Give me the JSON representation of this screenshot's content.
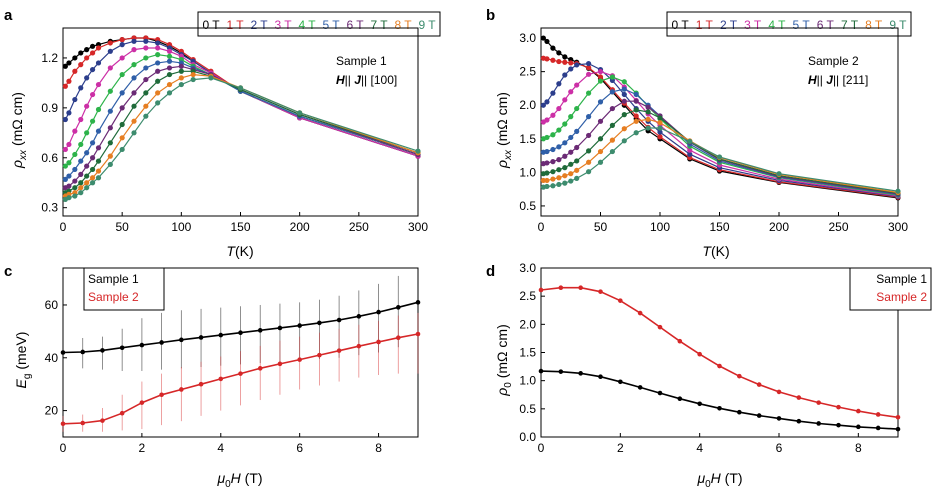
{
  "chart_data": [
    {
      "panel": "a",
      "type": "line",
      "annotation": [
        "Sample 1",
        "H|| J|| [100]"
      ],
      "xlabel": "T(K)",
      "ylabel": "ρxx (mΩ cm)",
      "xlim": [
        0,
        300
      ],
      "ylim": [
        0.25,
        1.38
      ],
      "xticks": [
        0,
        50,
        100,
        150,
        200,
        250,
        300
      ],
      "yticks": [
        0.3,
        0.6,
        0.9,
        1.2
      ],
      "ytick_labels": [
        "0.3",
        "0.6",
        "0.9",
        "1.2"
      ],
      "legend": {
        "placement": "top",
        "entries": [
          "0 T",
          "1 T",
          "2 T",
          "3 T",
          "4 T",
          "5 T",
          "6 T",
          "7 T",
          "8 T",
          "9 T"
        ]
      },
      "x": [
        2,
        5,
        10,
        15,
        20,
        25,
        30,
        40,
        50,
        60,
        70,
        80,
        90,
        100,
        110,
        125,
        150,
        200,
        300
      ],
      "series": [
        {
          "name": "0 T",
          "color": "#000000",
          "values": [
            1.15,
            1.17,
            1.2,
            1.23,
            1.25,
            1.27,
            1.28,
            1.3,
            1.31,
            1.32,
            1.32,
            1.3,
            1.27,
            1.23,
            1.18,
            1.11,
            1.0,
            0.84,
            0.61
          ]
        },
        {
          "name": "1 T",
          "color": "#d62728",
          "values": [
            1.03,
            1.06,
            1.12,
            1.16,
            1.2,
            1.23,
            1.26,
            1.29,
            1.31,
            1.32,
            1.32,
            1.31,
            1.28,
            1.24,
            1.19,
            1.12,
            1.0,
            0.84,
            0.61
          ]
        },
        {
          "name": "2 T",
          "color": "#2c3e8c",
          "values": [
            0.83,
            0.87,
            0.95,
            1.02,
            1.08,
            1.13,
            1.17,
            1.24,
            1.28,
            1.3,
            1.3,
            1.29,
            1.26,
            1.22,
            1.18,
            1.11,
            1.0,
            0.84,
            0.61
          ]
        },
        {
          "name": "3 T",
          "color": "#cc2fa6",
          "values": [
            0.65,
            0.68,
            0.76,
            0.83,
            0.91,
            0.98,
            1.04,
            1.14,
            1.2,
            1.25,
            1.26,
            1.26,
            1.24,
            1.21,
            1.16,
            1.11,
            1.0,
            0.84,
            0.61
          ]
        },
        {
          "name": "4 T",
          "color": "#2db34a",
          "values": [
            0.55,
            0.57,
            0.62,
            0.68,
            0.75,
            0.82,
            0.89,
            1.0,
            1.1,
            1.16,
            1.2,
            1.22,
            1.21,
            1.19,
            1.15,
            1.1,
            1.0,
            0.85,
            0.62
          ]
        },
        {
          "name": "5 T",
          "color": "#2f5fa8",
          "values": [
            0.47,
            0.49,
            0.53,
            0.58,
            0.63,
            0.69,
            0.76,
            0.88,
            0.99,
            1.08,
            1.14,
            1.17,
            1.18,
            1.17,
            1.14,
            1.1,
            1.0,
            0.85,
            0.62
          ]
        },
        {
          "name": "6 T",
          "color": "#6b2a75",
          "values": [
            0.42,
            0.43,
            0.46,
            0.5,
            0.55,
            0.6,
            0.66,
            0.78,
            0.9,
            0.99,
            1.07,
            1.12,
            1.14,
            1.15,
            1.13,
            1.1,
            1.01,
            0.86,
            0.62
          ]
        },
        {
          "name": "7 T",
          "color": "#1f6b3a",
          "values": [
            0.39,
            0.4,
            0.42,
            0.45,
            0.49,
            0.53,
            0.58,
            0.69,
            0.8,
            0.91,
            0.99,
            1.06,
            1.1,
            1.12,
            1.12,
            1.09,
            1.01,
            0.86,
            0.63
          ]
        },
        {
          "name": "8 T",
          "color": "#e67e22",
          "values": [
            0.37,
            0.38,
            0.39,
            0.42,
            0.45,
            0.48,
            0.52,
            0.61,
            0.72,
            0.82,
            0.91,
            0.99,
            1.04,
            1.08,
            1.1,
            1.09,
            1.02,
            0.87,
            0.63
          ]
        },
        {
          "name": "9 T",
          "color": "#3d8c6e",
          "values": [
            0.35,
            0.36,
            0.37,
            0.39,
            0.42,
            0.45,
            0.48,
            0.56,
            0.65,
            0.75,
            0.85,
            0.93,
            0.99,
            1.04,
            1.07,
            1.08,
            1.02,
            0.87,
            0.64
          ]
        }
      ]
    },
    {
      "panel": "b",
      "type": "line",
      "annotation": [
        "Sample 2",
        "H|| J|| [211]"
      ],
      "xlabel": "T(K)",
      "ylabel": "ρxx (mΩ cm)",
      "xlim": [
        0,
        300
      ],
      "ylim": [
        0.35,
        3.15
      ],
      "xticks": [
        0,
        50,
        100,
        150,
        200,
        250,
        300
      ],
      "yticks": [
        0.5,
        1.0,
        1.5,
        2.0,
        2.5,
        3.0
      ],
      "ytick_labels": [
        "0.5",
        "1.0",
        "1.5",
        "2.0",
        "2.5",
        "3.0"
      ],
      "legend": {
        "placement": "top",
        "entries": [
          "0 T",
          "1 T",
          "2 T",
          "3 T",
          "4 T",
          "5 T",
          "6 T",
          "7 T",
          "8 T",
          "9 T"
        ]
      },
      "x": [
        2,
        5,
        10,
        15,
        20,
        25,
        30,
        40,
        50,
        60,
        70,
        80,
        90,
        100,
        125,
        150,
        200,
        300
      ],
      "series": [
        {
          "name": "0 T",
          "color": "#000000",
          "values": [
            3.0,
            2.95,
            2.85,
            2.78,
            2.72,
            2.68,
            2.64,
            2.55,
            2.4,
            2.2,
            2.0,
            1.8,
            1.62,
            1.5,
            1.2,
            1.02,
            0.85,
            0.62
          ]
        },
        {
          "name": "1 T",
          "color": "#d62728",
          "values": [
            2.7,
            2.69,
            2.67,
            2.65,
            2.64,
            2.63,
            2.62,
            2.56,
            2.42,
            2.23,
            2.03,
            1.84,
            1.67,
            1.53,
            1.22,
            1.04,
            0.86,
            0.63
          ]
        },
        {
          "name": "2 T",
          "color": "#2c3e8c",
          "values": [
            2.0,
            2.05,
            2.18,
            2.32,
            2.45,
            2.54,
            2.6,
            2.62,
            2.53,
            2.37,
            2.16,
            1.95,
            1.76,
            1.6,
            1.27,
            1.07,
            0.88,
            0.64
          ]
        },
        {
          "name": "3 T",
          "color": "#cc2fa6",
          "values": [
            1.75,
            1.78,
            1.85,
            1.95,
            2.08,
            2.2,
            2.3,
            2.46,
            2.5,
            2.44,
            2.27,
            2.07,
            1.87,
            1.7,
            1.33,
            1.11,
            0.9,
            0.65
          ]
        },
        {
          "name": "4 T",
          "color": "#2db34a",
          "values": [
            1.5,
            1.52,
            1.56,
            1.63,
            1.72,
            1.83,
            1.95,
            2.18,
            2.36,
            2.42,
            2.35,
            2.18,
            1.98,
            1.8,
            1.39,
            1.15,
            0.92,
            0.66
          ]
        },
        {
          "name": "5 T",
          "color": "#2f5fa8",
          "values": [
            1.3,
            1.31,
            1.34,
            1.38,
            1.44,
            1.52,
            1.61,
            1.83,
            2.05,
            2.2,
            2.24,
            2.16,
            2.0,
            1.84,
            1.42,
            1.17,
            0.93,
            0.67
          ]
        },
        {
          "name": "6 T",
          "color": "#6b2a75",
          "values": [
            1.13,
            1.14,
            1.16,
            1.19,
            1.24,
            1.3,
            1.37,
            1.55,
            1.76,
            1.95,
            2.06,
            2.06,
            1.97,
            1.84,
            1.45,
            1.19,
            0.94,
            0.68
          ]
        },
        {
          "name": "7 T",
          "color": "#1f6b3a",
          "values": [
            0.98,
            0.99,
            1.01,
            1.04,
            1.07,
            1.12,
            1.17,
            1.32,
            1.5,
            1.7,
            1.86,
            1.93,
            1.9,
            1.81,
            1.46,
            1.2,
            0.95,
            0.69
          ]
        },
        {
          "name": "8 T",
          "color": "#e67e22",
          "values": [
            0.88,
            0.88,
            0.9,
            0.92,
            0.95,
            0.98,
            1.03,
            1.15,
            1.31,
            1.48,
            1.65,
            1.76,
            1.79,
            1.74,
            1.47,
            1.22,
            0.97,
            0.7
          ]
        },
        {
          "name": "9 T",
          "color": "#3d8c6e",
          "values": [
            0.78,
            0.79,
            0.8,
            0.82,
            0.84,
            0.87,
            0.91,
            1.01,
            1.15,
            1.31,
            1.47,
            1.59,
            1.66,
            1.66,
            1.46,
            1.23,
            0.98,
            0.72
          ]
        }
      ]
    },
    {
      "panel": "c",
      "type": "line",
      "xlabel": "μ0H (T)",
      "ylabel": "Eg (meV)",
      "xlim": [
        0,
        9
      ],
      "ylim": [
        10,
        74
      ],
      "xticks": [
        0,
        2,
        4,
        6,
        8
      ],
      "yticks": [
        20,
        40,
        60
      ],
      "legend": {
        "placement": "top-left",
        "entries": [
          "Sample 1",
          "Sample 2"
        ]
      },
      "x": [
        0,
        0.5,
        1,
        1.5,
        2,
        2.5,
        3,
        3.5,
        4,
        4.5,
        5,
        5.5,
        6,
        6.5,
        7,
        7.5,
        8,
        8.5,
        9
      ],
      "series": [
        {
          "name": "Sample 1",
          "color": "#000000",
          "values": [
            42,
            42.2,
            42.8,
            43.8,
            44.8,
            45.8,
            46.8,
            47.7,
            48.6,
            49.5,
            50.4,
            51.3,
            52.2,
            53.2,
            54.3,
            55.7,
            57.3,
            59.1,
            61
          ],
          "error_low": [
            36,
            36,
            35.5,
            35,
            35,
            35.5,
            36,
            36.5,
            37,
            37.5,
            38,
            38.5,
            39,
            39.5,
            40,
            41,
            42,
            44,
            46
          ],
          "error_high": [
            48,
            47.5,
            48,
            51,
            55,
            57,
            58,
            58.5,
            59,
            59.5,
            60,
            60.5,
            61,
            62,
            63.5,
            65.5,
            68,
            71,
            73
          ]
        },
        {
          "name": "Sample 2",
          "color": "#d62728",
          "values": [
            15,
            15.3,
            16.2,
            19,
            23,
            26,
            28,
            30,
            32,
            34,
            36,
            37.7,
            39.3,
            41,
            42.7,
            44.4,
            46,
            47.6,
            49
          ],
          "error_low": [
            12,
            12,
            12,
            12.5,
            13,
            14.5,
            16,
            18,
            20,
            22,
            24,
            26,
            28,
            29.5,
            31,
            32.5,
            33.5,
            34,
            34
          ],
          "error_high": [
            18,
            18.5,
            21,
            26,
            31,
            34,
            36.5,
            38.5,
            40.5,
            42.5,
            44.5,
            46.5,
            48,
            49.5,
            51,
            52.5,
            54,
            56,
            57
          ]
        }
      ]
    },
    {
      "panel": "d",
      "type": "line",
      "xlabel": "μ0H (T)",
      "ylabel": "ρ0 (mΩ cm)",
      "xlim": [
        0,
        9
      ],
      "ylim": [
        0,
        3.0
      ],
      "xticks": [
        0,
        2,
        4,
        6,
        8
      ],
      "yticks": [
        0,
        0.5,
        1.0,
        1.5,
        2.0,
        2.5,
        3.0
      ],
      "ytick_labels": [
        "0.0",
        "0.5",
        "1.0",
        "1.5",
        "2.0",
        "2.5",
        "3.0"
      ],
      "legend": {
        "placement": "top-right",
        "entries": [
          "Sample 1",
          "Sample 2"
        ]
      },
      "x": [
        0,
        0.5,
        1,
        1.5,
        2,
        2.5,
        3,
        3.5,
        4,
        4.5,
        5,
        5.5,
        6,
        6.5,
        7,
        7.5,
        8,
        8.5,
        9
      ],
      "series": [
        {
          "name": "Sample 1",
          "color": "#000000",
          "values": [
            1.17,
            1.16,
            1.13,
            1.07,
            0.98,
            0.88,
            0.78,
            0.68,
            0.59,
            0.51,
            0.44,
            0.38,
            0.33,
            0.28,
            0.24,
            0.21,
            0.18,
            0.16,
            0.14
          ]
        },
        {
          "name": "Sample 2",
          "color": "#d62728",
          "values": [
            2.61,
            2.65,
            2.65,
            2.58,
            2.42,
            2.2,
            1.95,
            1.7,
            1.47,
            1.26,
            1.08,
            0.93,
            0.8,
            0.7,
            0.61,
            0.53,
            0.46,
            0.4,
            0.35
          ]
        }
      ]
    }
  ]
}
